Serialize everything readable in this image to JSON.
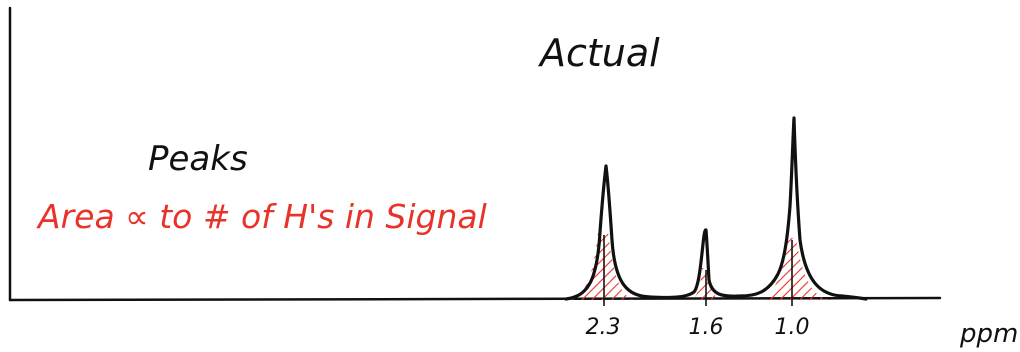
{
  "texts": {
    "title": "Actual",
    "peaks_label": "Peaks",
    "area_note": "Area ∝ to # of H's in Signal",
    "x_unit": "ppm"
  },
  "peaks": [
    {
      "label": "2.3",
      "ppm": 2.3,
      "relative_height": 1.0
    },
    {
      "label": "1.6",
      "ppm": 1.6,
      "relative_height": 0.52
    },
    {
      "label": "1.0",
      "ppm": 1.0,
      "relative_height": 1.2
    }
  ],
  "colors": {
    "ink": "#111111",
    "accent": "#e8332a",
    "background": "#ffffff"
  }
}
